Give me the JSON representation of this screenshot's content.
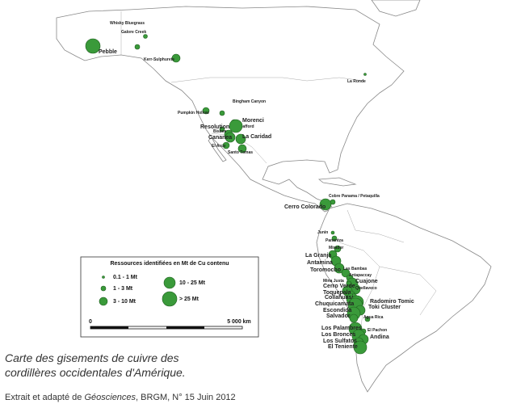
{
  "map": {
    "deposits": [
      "Pebble",
      "Whisky Bluegrass",
      "Galore Creek",
      "Kerr-Sulphurets",
      "Pumpkin Hollow",
      "Bingham Canyon",
      "Safford",
      "Morenci",
      "Resolution",
      "Bisbee",
      "Cananea",
      "La Caridad",
      "El Arco",
      "Santo Tomas",
      "La Ronde",
      "Cobre Panama / Petaquilla",
      "Cerro Colorado",
      "Junin",
      "Panantza",
      "Mirador",
      "La Granja",
      "Antamina",
      "Toromocho",
      "Las Bambas",
      "Antapaccay",
      "Cuajone",
      "Mina Justa",
      "Quellaveco",
      "Cerro Verde",
      "Toquepala",
      "Collahuasi",
      "Radomiro Tomic",
      "Chuquicamata",
      "Toki Cluster",
      "Escondida",
      "Salvador",
      "Agua Rica",
      "Los Palambres",
      "El Pachon",
      "Los Bronces",
      "Andina",
      "Los Sulfatos",
      "El Teniente"
    ]
  },
  "legend": {
    "title": "Ressources identifiées en Mt de Cu contenu",
    "classes": [
      "0.1 - 1 Mt",
      "1 - 3 Mt",
      "3 - 10 Mt",
      "10 - 25 Mt",
      "> 25 Mt"
    ],
    "scale_start": "0",
    "scale_end": "5 000 km"
  },
  "caption": {
    "line1": "Carte des gisements de cuivre des",
    "line2": "cordillères occidentales d'Amérique.",
    "source_before": "Extrait et adapté de ",
    "source_journal": "Géosciences",
    "source_after": ", BRGM, N° 15 Juin 2012"
  }
}
